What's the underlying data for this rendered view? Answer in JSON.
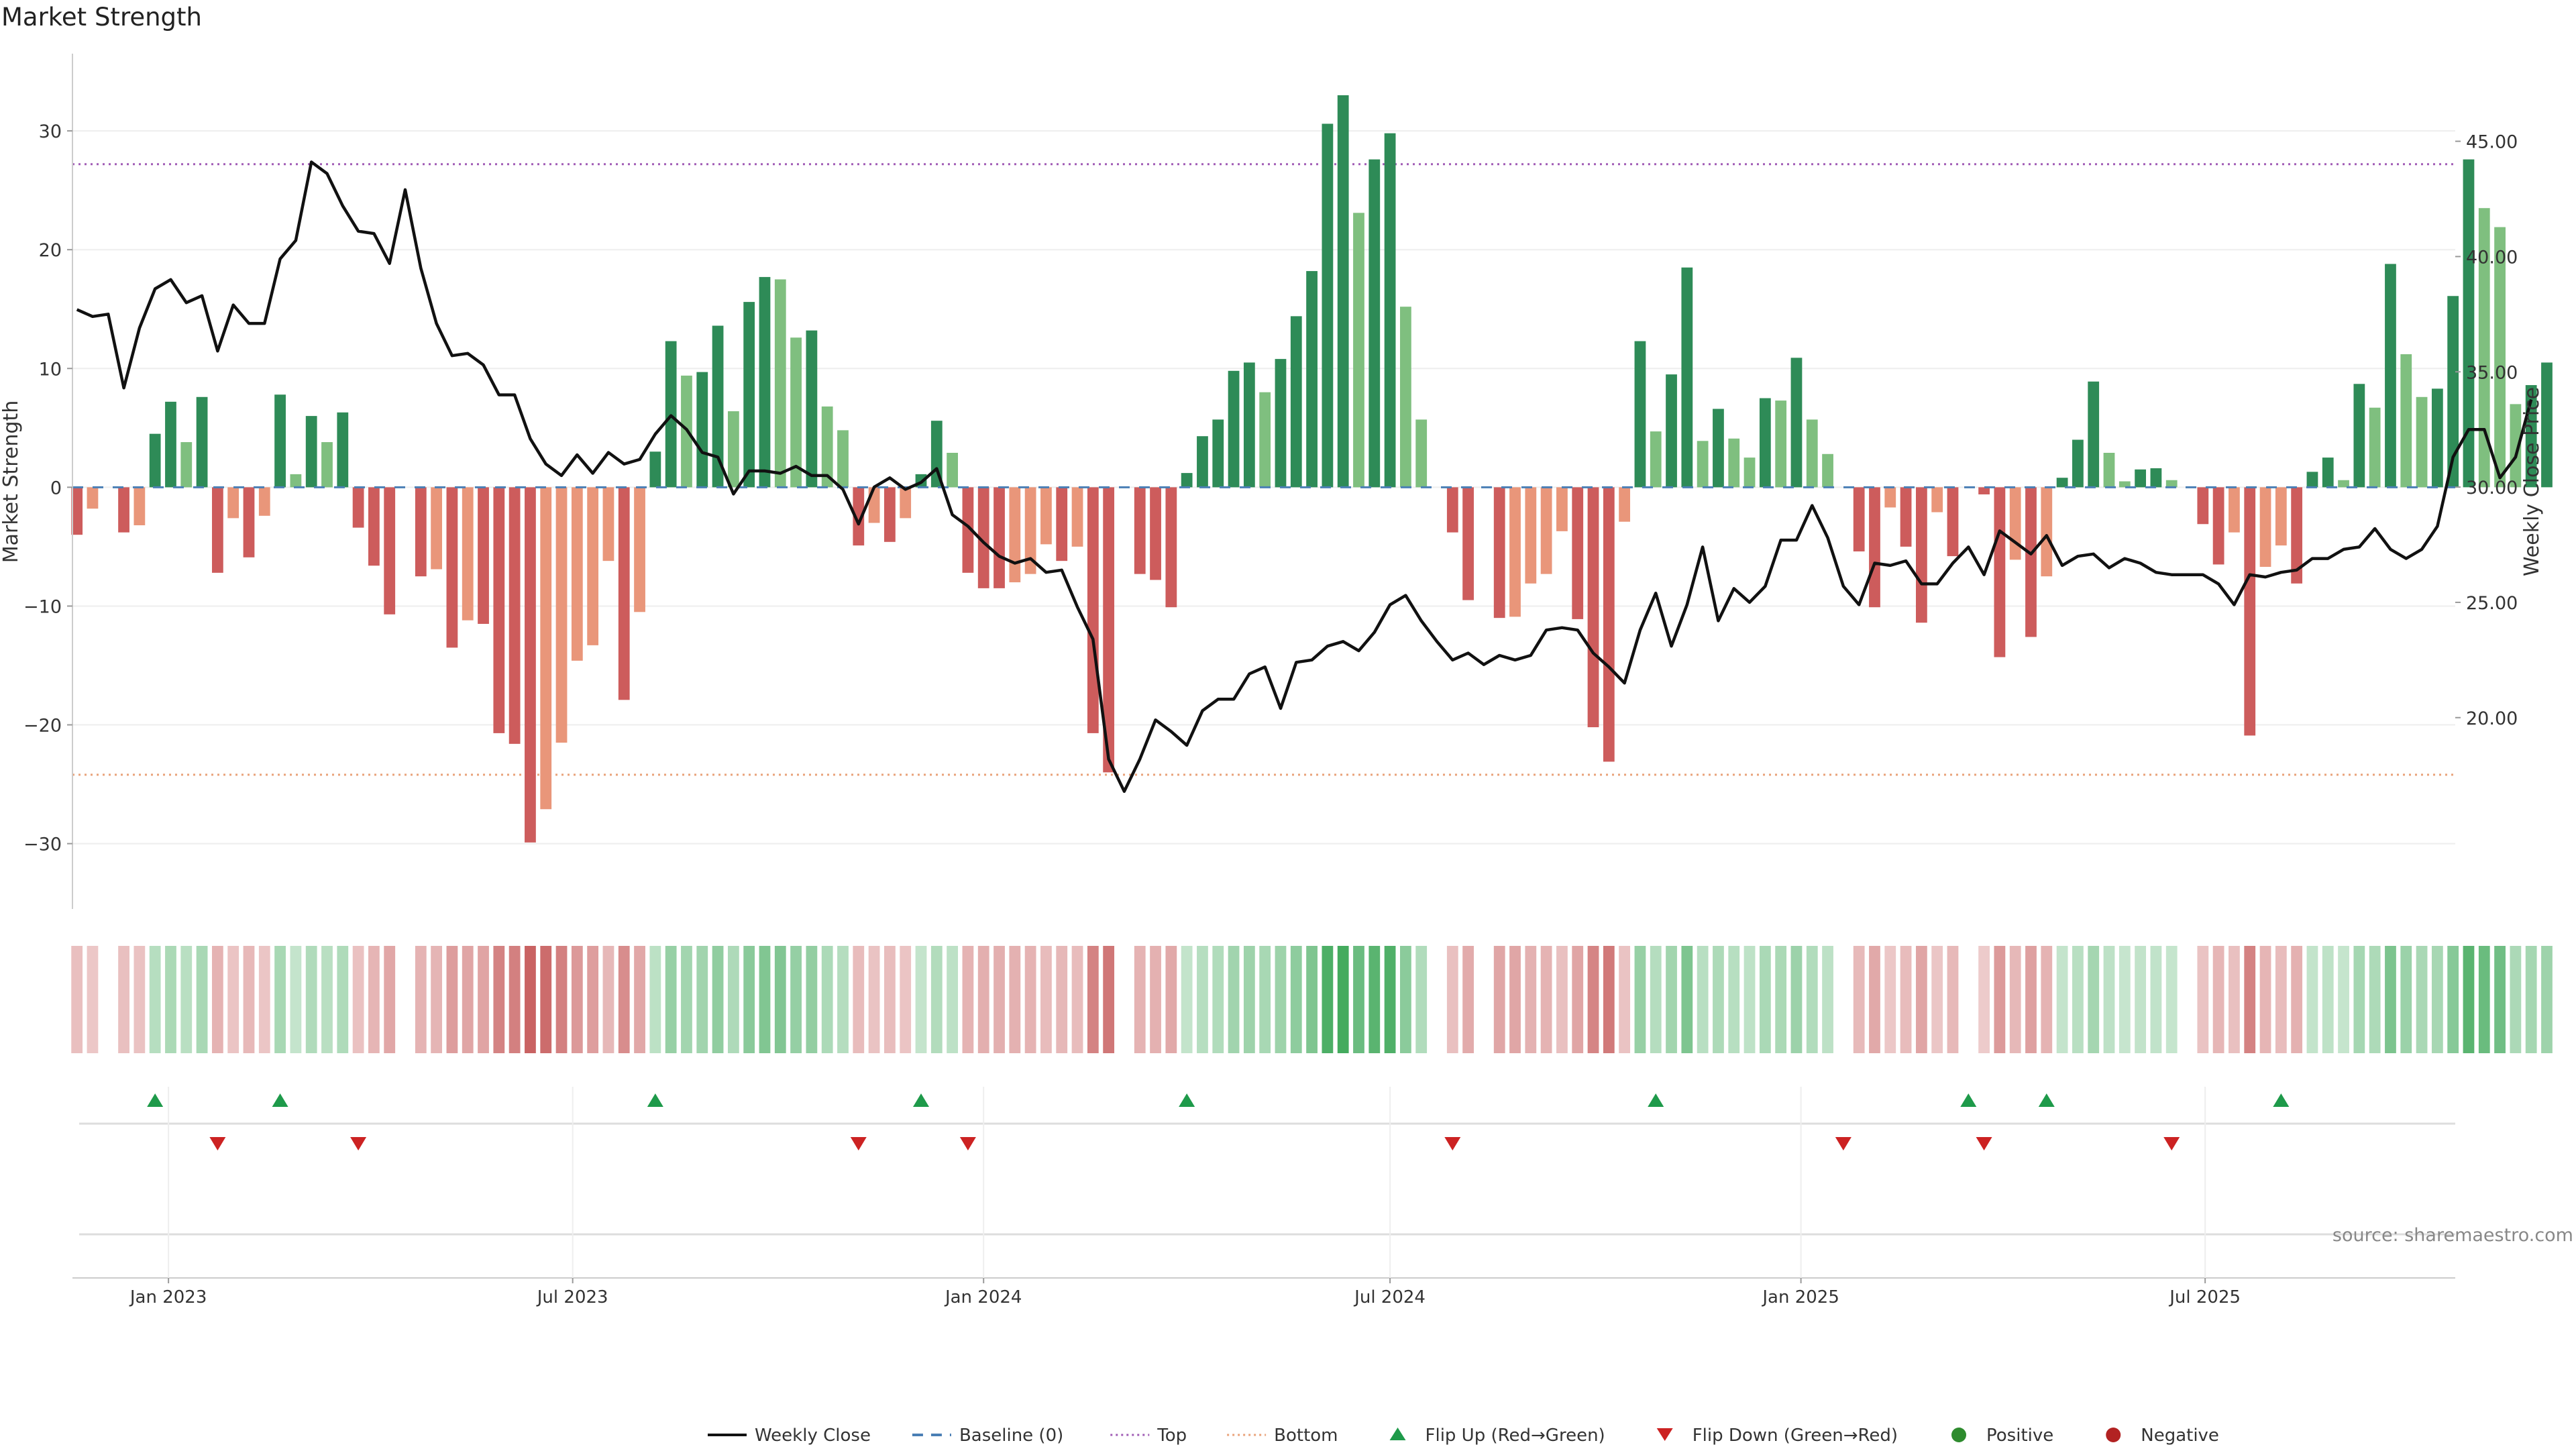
{
  "chart_data": {
    "type": "bar",
    "title": "Market Strength",
    "ylabel_left": "Market Strength",
    "ylabel_right": "Weekly Close Price",
    "source": "source: sharemaestro.com",
    "x_start": "2022-11-21",
    "week_days": 7,
    "x_domain": [
      "2022-11-19",
      "2025-10-21"
    ],
    "x_ticks": [
      {
        "date": "2023-01-01",
        "label": "Jan 2023"
      },
      {
        "date": "2023-07-01",
        "label": "Jul 2023"
      },
      {
        "date": "2024-01-01",
        "label": "Jan 2024"
      },
      {
        "date": "2024-07-01",
        "label": "Jul 2024"
      },
      {
        "date": "2025-01-01",
        "label": "Jan 2025"
      },
      {
        "date": "2025-07-01",
        "label": "Jul 2025"
      }
    ],
    "ylim_left": [
      -35.5,
      36.5
    ],
    "yticks_left": [
      -30,
      -20,
      -10,
      0,
      10,
      20,
      30
    ],
    "ylim_right": [
      11.7,
      48.8
    ],
    "yticks_right": [
      "20.00",
      "25.00",
      "30.00",
      "35.00",
      "40.00",
      "45.00"
    ],
    "top_line": 27.2,
    "bottom_line": -24.2,
    "baseline": 0,
    "colors": {
      "pos_strong": "#2e8b57",
      "pos_light": "#7fbf7f",
      "neg_strong": "#cd5c5c",
      "neg_light": "#e9967a",
      "close_line": "#111111",
      "baseline": "#4a7fb5",
      "top": "#a05cb5",
      "bottom": "#e9a27a",
      "flip_up": "#1e9a4a",
      "flip_down": "#cc2222",
      "positive_dot": "#2e8b2e",
      "negative_dot": "#b22222"
    },
    "series": [
      {
        "name": "Market Strength",
        "values": [
          -4,
          -1.8,
          0,
          -3.8,
          -3.2,
          4.5,
          7.2,
          3.8,
          7.6,
          -7.2,
          -2.6,
          -5.9,
          -2.4,
          7.8,
          1.1,
          6,
          3.8,
          6.3,
          -3.4,
          -6.6,
          -10.7,
          0,
          -7.5,
          -6.9,
          -13.5,
          -11.2,
          -11.5,
          -20.7,
          -21.6,
          -29.9,
          -27.1,
          -21.5,
          -14.6,
          -13.3,
          -6.2,
          -17.9,
          -10.5,
          3,
          12.3,
          9.4,
          9.7,
          13.6,
          6.4,
          15.6,
          17.7,
          17.5,
          12.6,
          13.2,
          6.8,
          4.8,
          -4.9,
          -3,
          -4.6,
          -2.6,
          1.1,
          5.6,
          2.9,
          -7.2,
          -8.5,
          -8.5,
          -8,
          -7.3,
          -4.8,
          -6.2,
          -5,
          -20.7,
          -24,
          0,
          -7.3,
          -7.8,
          -10.1,
          1.2,
          4.3,
          5.7,
          9.8,
          10.5,
          8,
          10.8,
          14.4,
          18.2,
          30.6,
          33,
          23.1,
          27.6,
          29.8,
          15.2,
          5.7,
          0,
          -3.8,
          -9.5,
          0,
          -11,
          -10.9,
          -8.1,
          -7.3,
          -3.7,
          -11.1,
          -20.2,
          -23.1,
          -2.9,
          12.3,
          4.7,
          9.5,
          18.5,
          3.9,
          6.6,
          4.1,
          2.5,
          7.5,
          7.3,
          10.9,
          5.7,
          2.8,
          0,
          -5.4,
          -10.1,
          -1.7,
          -5,
          -11.4,
          -2.1,
          -5.8,
          0,
          -0.6,
          -14.3,
          -6.1,
          -12.6,
          -7.5,
          0.8,
          4,
          8.9,
          2.9,
          0.5,
          1.5,
          1.6,
          0.6,
          0,
          -3.1,
          -6.5,
          -3.8,
          -20.9,
          -6.7,
          -4.9,
          -8.1,
          1.3,
          2.5,
          0.6,
          8.7,
          6.7,
          18.8,
          11.2,
          7.6,
          8.3,
          16.1,
          27.6,
          23.5,
          21.9,
          7,
          8.6,
          10.5
        ]
      },
      {
        "name": "Weekly Close",
        "values": [
          37.7,
          37.4,
          37.5,
          34.3,
          36.9,
          38.6,
          39,
          38,
          38.3,
          35.9,
          37.9,
          37.1,
          37.1,
          39.9,
          40.7,
          44.1,
          43.6,
          42.2,
          41.1,
          41,
          39.7,
          42.9,
          39.5,
          37.1,
          35.7,
          35.8,
          35.3,
          34,
          34,
          32.1,
          31,
          30.5,
          31.4,
          30.6,
          31.5,
          31,
          31.2,
          32.3,
          33.1,
          32.5,
          31.5,
          31.3,
          29.7,
          30.7,
          30.7,
          30.6,
          30.9,
          30.5,
          30.5,
          29.9,
          28.4,
          30,
          30.4,
          29.9,
          30.2,
          30.8,
          28.8,
          28.3,
          27.6,
          27,
          26.7,
          26.9,
          26.3,
          26.4,
          24.8,
          23.4,
          18.2,
          16.8,
          18.2,
          19.9,
          19.4,
          18.8,
          20.3,
          20.8,
          20.8,
          21.9,
          22.2,
          20.4,
          22.4,
          22.5,
          23.1,
          23.3,
          22.9,
          23.7,
          24.9,
          25.3,
          24.2,
          23.3,
          22.5,
          22.8,
          22.3,
          22.7,
          22.5,
          22.7,
          23.8,
          23.9,
          23.8,
          22.8,
          22.2,
          21.5,
          23.8,
          25.4,
          23.1,
          24.9,
          27.4,
          24.2,
          25.6,
          25,
          25.7,
          27.7,
          27.7,
          29.2,
          27.8,
          25.7,
          24.9,
          26.7,
          26.6,
          26.8,
          25.8,
          25.8,
          26.7,
          27.4,
          26.2,
          28.1,
          27.6,
          27.1,
          27.9,
          26.6,
          27,
          27.1,
          26.5,
          26.9,
          26.7,
          26.3,
          26.2,
          26.2,
          26.2,
          25.8,
          24.9,
          26.2,
          26.1,
          26.3,
          26.4,
          26.9,
          26.9,
          27.3,
          27.4,
          28.2,
          27.3,
          26.9,
          27.3,
          28.3,
          31.3,
          32.5,
          32.5,
          30.4,
          31.3,
          33.8
        ]
      }
    ],
    "flip_up_indices": [
      5,
      13,
      37,
      54,
      71,
      101,
      121,
      126,
      141
    ],
    "flip_down_indices": [
      9,
      18,
      50,
      57,
      88,
      113,
      122,
      134
    ],
    "legend": [
      {
        "label": "Weekly Close",
        "kind": "line"
      },
      {
        "label": "Baseline (0)",
        "kind": "dash"
      },
      {
        "label": "Top",
        "kind": "dot-purple"
      },
      {
        "label": "Bottom",
        "kind": "dot-orange"
      },
      {
        "label": "Flip Up (Red→Green)",
        "kind": "tri-up"
      },
      {
        "label": "Flip Down (Green→Red)",
        "kind": "tri-down"
      },
      {
        "label": "Positive",
        "kind": "circle-green"
      },
      {
        "label": "Negative",
        "kind": "circle-red"
      }
    ]
  }
}
